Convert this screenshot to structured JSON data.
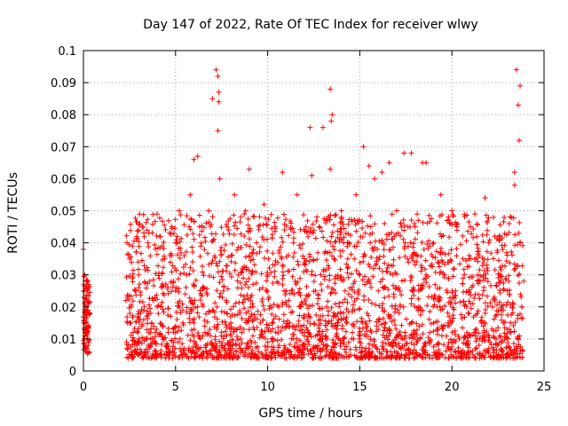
{
  "chart_data": {
    "type": "scatter",
    "title": "Day 147 of 2022, Rate Of TEC Index for receiver wlwy",
    "xlabel": "GPS time / hours",
    "ylabel": "ROTI / TECUs",
    "xlim": [
      0,
      25
    ],
    "ylim": [
      0,
      0.1
    ],
    "xticks": [
      0,
      5,
      10,
      15,
      20,
      25
    ],
    "xtick_labels": [
      "0",
      "5",
      "10",
      "15",
      "20",
      "25"
    ],
    "yticks": [
      0,
      0.01,
      0.02,
      0.03,
      0.04,
      0.05,
      0.06,
      0.07,
      0.08,
      0.09,
      0.1
    ],
    "ytick_labels": [
      "0",
      "0.01",
      "0.02",
      "0.03",
      "0.04",
      "0.05",
      "0.06",
      "0.07",
      "0.08",
      "0.09",
      "0.1"
    ],
    "grid": true,
    "marker": "+",
    "color": "#ff0000",
    "series": [
      {
        "name": "ROTI",
        "x": [
          0.0,
          0.05,
          0.1,
          0.15,
          0.2,
          0.25,
          0.3,
          0.08,
          0.18,
          0.22,
          0.28,
          0.12,
          2.4,
          2.5,
          2.6,
          2.7,
          2.8,
          2.9,
          3.0,
          3.1,
          3.2,
          3.3,
          3.4,
          3.5,
          3.6,
          3.7,
          3.8,
          3.9,
          4.0,
          4.2,
          4.4,
          4.6,
          4.8,
          5.0,
          5.2,
          5.4,
          5.6,
          5.8,
          6.0,
          6.2,
          6.4,
          6.6,
          6.8,
          7.0,
          7.2,
          7.3,
          7.35,
          7.4,
          7.6,
          7.8,
          8.0,
          8.2,
          8.4,
          8.6,
          8.8,
          9.0,
          9.2,
          9.4,
          9.6,
          9.8,
          10.0,
          10.2,
          10.4,
          10.6,
          10.8,
          11.0,
          11.2,
          11.4,
          11.6,
          11.8,
          12.0,
          12.2,
          12.4,
          12.6,
          12.8,
          13.0,
          13.2,
          13.4,
          13.5,
          13.6,
          13.8,
          14.0,
          14.2,
          14.4,
          14.6,
          14.8,
          15.0,
          15.2,
          15.4,
          15.6,
          15.8,
          16.0,
          16.2,
          16.4,
          16.6,
          16.8,
          17.0,
          17.2,
          17.4,
          17.6,
          17.8,
          18.0,
          18.2,
          18.4,
          18.6,
          18.8,
          19.0,
          19.2,
          19.4,
          19.6,
          19.8,
          20.0,
          20.2,
          20.4,
          20.6,
          20.8,
          21.0,
          21.2,
          21.4,
          21.6,
          21.8,
          22.0,
          22.2,
          22.4,
          22.6,
          22.8,
          23.0,
          23.2,
          23.4,
          23.5,
          23.6,
          23.7,
          23.8,
          23.9,
          3.0,
          4.0,
          5.0,
          6.0,
          7.0,
          8.0,
          9.0,
          10.0,
          11.0,
          12.0,
          13.0,
          14.0,
          15.0,
          16.0,
          17.0,
          18.0,
          19.0,
          20.0,
          21.0,
          22.0,
          23.0,
          2.6,
          3.5,
          4.5,
          5.5,
          6.5,
          7.5,
          8.5,
          9.5,
          10.5,
          11.5,
          12.5,
          13.5,
          14.5,
          15.5,
          16.5,
          17.5,
          18.5,
          19.5,
          20.5,
          21.5,
          22.5,
          23.5,
          12.3,
          13.45,
          15.5,
          16.2,
          17.8,
          18.6,
          21.8,
          23.4,
          6.2,
          7.3,
          7.35,
          13.4,
          23.7,
          23.65
        ],
        "y": [
          0.038,
          0.025,
          0.015,
          0.012,
          0.02,
          0.008,
          0.006,
          0.03,
          0.018,
          0.01,
          0.027,
          0.007,
          0.015,
          0.035,
          0.02,
          0.012,
          0.025,
          0.008,
          0.03,
          0.018,
          0.045,
          0.02,
          0.01,
          0.04,
          0.028,
          0.015,
          0.022,
          0.012,
          0.049,
          0.02,
          0.035,
          0.012,
          0.045,
          0.025,
          0.05,
          0.015,
          0.03,
          0.055,
          0.066,
          0.02,
          0.04,
          0.012,
          0.05,
          0.085,
          0.094,
          0.092,
          0.087,
          0.06,
          0.025,
          0.045,
          0.015,
          0.055,
          0.03,
          0.012,
          0.05,
          0.063,
          0.02,
          0.04,
          0.015,
          0.052,
          0.03,
          0.01,
          0.045,
          0.02,
          0.062,
          0.025,
          0.015,
          0.04,
          0.055,
          0.02,
          0.035,
          0.012,
          0.061,
          0.025,
          0.045,
          0.076,
          0.02,
          0.088,
          0.08,
          0.035,
          0.015,
          0.05,
          0.025,
          0.04,
          0.012,
          0.055,
          0.03,
          0.07,
          0.018,
          0.045,
          0.06,
          0.025,
          0.04,
          0.015,
          0.065,
          0.03,
          0.05,
          0.02,
          0.068,
          0.035,
          0.015,
          0.045,
          0.025,
          0.065,
          0.03,
          0.012,
          0.04,
          0.02,
          0.055,
          0.03,
          0.015,
          0.05,
          0.025,
          0.01,
          0.035,
          0.02,
          0.045,
          0.012,
          0.03,
          0.015,
          0.054,
          0.04,
          0.02,
          0.01,
          0.03,
          0.015,
          0.025,
          0.012,
          0.058,
          0.094,
          0.083,
          0.04,
          0.02,
          0.028,
          0.01,
          0.02,
          0.012,
          0.015,
          0.008,
          0.011,
          0.013,
          0.009,
          0.014,
          0.012,
          0.007,
          0.016,
          0.01,
          0.013,
          0.008,
          0.012,
          0.015,
          0.009,
          0.011,
          0.007,
          0.013,
          0.005,
          0.006,
          0.006,
          0.007,
          0.006,
          0.008,
          0.007,
          0.006,
          0.006,
          0.005,
          0.007,
          0.006,
          0.005,
          0.007,
          0.006,
          0.005,
          0.006,
          0.005,
          0.004,
          0.005,
          0.004,
          0.006,
          0.076,
          0.078,
          0.064,
          0.062,
          0.068,
          0.065,
          0.054,
          0.062,
          0.067,
          0.075,
          0.084,
          0.063,
          0.089,
          0.072
        ]
      }
    ]
  }
}
